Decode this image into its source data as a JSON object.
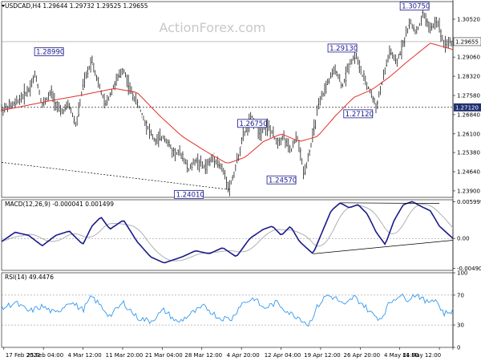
{
  "watermark": "ActionForex.com",
  "chart_data": [
    {
      "type": "line",
      "panel": "price",
      "header": "USDCAD,H4  1.29644 1.29732 1.29525 1.29655",
      "ylim": [
        1.2365,
        1.312
      ],
      "y_ticks": [
        "1.30520",
        "1.29060",
        "1.28320",
        "1.27580",
        "1.26840",
        "1.26100",
        "1.25380",
        "1.24640",
        "1.23900"
      ],
      "y_tick_values": [
        1.3052,
        1.2906,
        1.2832,
        1.2758,
        1.2684,
        1.261,
        1.2538,
        1.2464,
        1.239
      ],
      "x_ticks": [
        "17 Feb 2022",
        "25 Feb 04:00",
        "4 Mar 12:00",
        "11 Mar 20:00",
        "21 Mar 04:00",
        "28 Mar 12:00",
        "4 Apr 20:00",
        "12 Apr 04:00",
        "19 Apr 12:00",
        "26 Apr 20:00",
        "4 May 04:00",
        "11 May 12:00"
      ],
      "current_price": {
        "label": "1.29655",
        "value": 1.29655
      },
      "level_line": {
        "label": "1.27120",
        "value": 1.2712
      },
      "annotations": [
        {
          "label": "1.28990",
          "value": 1.2899,
          "x_index": 0.105,
          "y_value": 1.2899
        },
        {
          "label": "1.24010",
          "value": 1.2401,
          "x_index": 0.415,
          "y_value": 1.2401
        },
        {
          "label": "1.26750",
          "value": 1.2675,
          "x_index": 0.555,
          "y_value": 1.2675
        },
        {
          "label": "1.24570",
          "value": 1.2457,
          "x_index": 0.62,
          "y_value": 1.2457
        },
        {
          "label": "1.29130",
          "value": 1.2913,
          "x_index": 0.755,
          "y_value": 1.2913
        },
        {
          "label": "1.27120",
          "value": 1.2712,
          "x_index": 0.79,
          "y_value": 1.2712
        },
        {
          "label": "1.30750",
          "value": 1.3075,
          "x_index": 0.915,
          "y_value": 1.3075
        }
      ],
      "price_anchors": [
        [
          0.0,
          1.2705
        ],
        [
          0.03,
          1.2725
        ],
        [
          0.06,
          1.278
        ],
        [
          0.075,
          1.284
        ],
        [
          0.09,
          1.272
        ],
        [
          0.11,
          1.277
        ],
        [
          0.13,
          1.269
        ],
        [
          0.15,
          1.272
        ],
        [
          0.165,
          1.264
        ],
        [
          0.18,
          1.279
        ],
        [
          0.2,
          1.2899
        ],
        [
          0.215,
          1.28
        ],
        [
          0.23,
          1.272
        ],
        [
          0.25,
          1.28
        ],
        [
          0.27,
          1.286
        ],
        [
          0.285,
          1.278
        ],
        [
          0.3,
          1.273
        ],
        [
          0.32,
          1.265
        ],
        [
          0.34,
          1.258
        ],
        [
          0.36,
          1.26
        ],
        [
          0.38,
          1.254
        ],
        [
          0.4,
          1.253
        ],
        [
          0.415,
          1.247
        ],
        [
          0.43,
          1.251
        ],
        [
          0.45,
          1.248
        ],
        [
          0.47,
          1.252
        ],
        [
          0.49,
          1.247
        ],
        [
          0.505,
          1.2401
        ],
        [
          0.52,
          1.249
        ],
        [
          0.535,
          1.26
        ],
        [
          0.555,
          1.2675
        ],
        [
          0.57,
          1.262
        ],
        [
          0.59,
          1.264
        ],
        [
          0.61,
          1.258
        ],
        [
          0.625,
          1.26
        ],
        [
          0.64,
          1.254
        ],
        [
          0.655,
          1.26
        ],
        [
          0.67,
          1.2457
        ],
        [
          0.685,
          1.256
        ],
        [
          0.7,
          1.27
        ],
        [
          0.72,
          1.28
        ],
        [
          0.74,
          1.286
        ],
        [
          0.755,
          1.279
        ],
        [
          0.77,
          1.288
        ],
        [
          0.785,
          1.2913
        ],
        [
          0.8,
          1.283
        ],
        [
          0.815,
          1.278
        ],
        [
          0.83,
          1.2712
        ],
        [
          0.845,
          1.282
        ],
        [
          0.86,
          1.293
        ],
        [
          0.875,
          1.288
        ],
        [
          0.89,
          1.296
        ],
        [
          0.905,
          1.304
        ],
        [
          0.92,
          1.3
        ],
        [
          0.935,
          1.3075
        ],
        [
          0.95,
          1.301
        ],
        [
          0.965,
          1.305
        ],
        [
          0.98,
          1.296
        ],
        [
          1.0,
          1.29655
        ]
      ],
      "ma_anchors": [
        [
          0.0,
          1.27
        ],
        [
          0.1,
          1.2735
        ],
        [
          0.18,
          1.276
        ],
        [
          0.25,
          1.2785
        ],
        [
          0.3,
          1.277
        ],
        [
          0.35,
          1.268
        ],
        [
          0.4,
          1.26
        ],
        [
          0.45,
          1.2545
        ],
        [
          0.5,
          1.2495
        ],
        [
          0.54,
          1.252
        ],
        [
          0.58,
          1.258
        ],
        [
          0.62,
          1.261
        ],
        [
          0.66,
          1.258
        ],
        [
          0.7,
          1.26
        ],
        [
          0.74,
          1.268
        ],
        [
          0.78,
          1.275
        ],
        [
          0.82,
          1.278
        ],
        [
          0.86,
          1.283
        ],
        [
          0.9,
          1.289
        ],
        [
          0.95,
          1.296
        ],
        [
          1.0,
          1.2935
        ]
      ],
      "trendline": {
        "from": [
          0.0,
          1.25
        ],
        "to": [
          0.505,
          1.2395
        ]
      }
    },
    {
      "type": "line",
      "panel": "macd",
      "header": "MACD(12,26,9) -0.000041 0.001499",
      "ylim": [
        -0.0052,
        0.0063
      ],
      "y_ticks": [
        "0.005999",
        "0.00",
        "-0.004901"
      ],
      "y_tick_values": [
        0.005999,
        0.0,
        -0.004901
      ],
      "macd_anchors": [
        [
          0.0,
          -0.0005
        ],
        [
          0.03,
          0.001
        ],
        [
          0.06,
          0.0005
        ],
        [
          0.09,
          -0.0012
        ],
        [
          0.12,
          0.0005
        ],
        [
          0.15,
          0.0012
        ],
        [
          0.18,
          -0.001
        ],
        [
          0.2,
          0.002
        ],
        [
          0.22,
          0.0035
        ],
        [
          0.24,
          0.0015
        ],
        [
          0.27,
          0.003
        ],
        [
          0.3,
          -0.0005
        ],
        [
          0.33,
          -0.003
        ],
        [
          0.36,
          -0.004
        ],
        [
          0.4,
          -0.003
        ],
        [
          0.43,
          -0.002
        ],
        [
          0.46,
          -0.0025
        ],
        [
          0.49,
          -0.0015
        ],
        [
          0.52,
          -0.003
        ],
        [
          0.55,
          0.0
        ],
        [
          0.58,
          0.0015
        ],
        [
          0.6,
          0.002
        ],
        [
          0.62,
          0.0005
        ],
        [
          0.64,
          0.002
        ],
        [
          0.66,
          -0.0005
        ],
        [
          0.69,
          -0.0025
        ],
        [
          0.71,
          0.001
        ],
        [
          0.73,
          0.0045
        ],
        [
          0.75,
          0.0058
        ],
        [
          0.77,
          0.005
        ],
        [
          0.79,
          0.0055
        ],
        [
          0.81,
          0.004
        ],
        [
          0.83,
          0.001
        ],
        [
          0.85,
          -0.001
        ],
        [
          0.87,
          0.003
        ],
        [
          0.89,
          0.0055
        ],
        [
          0.91,
          0.006
        ],
        [
          0.93,
          0.0052
        ],
        [
          0.95,
          0.0045
        ],
        [
          0.97,
          0.002
        ],
        [
          1.0,
          -0.0
        ]
      ],
      "trendline_top": {
        "from": [
          0.75,
          0.0058
        ],
        "to": [
          0.97,
          0.0057
        ]
      },
      "trendline_bottom": {
        "from": [
          0.69,
          -0.0025
        ],
        "to": [
          1.0,
          -0.0003
        ]
      }
    },
    {
      "type": "line",
      "panel": "rsi",
      "header": "RSI(14) 49.4476",
      "ylim": [
        0,
        100
      ],
      "y_ticks": [
        "100",
        "70",
        "30",
        "0"
      ],
      "y_tick_values": [
        100,
        70,
        30,
        0
      ],
      "rsi_anchors": [
        [
          0.0,
          52
        ],
        [
          0.03,
          60
        ],
        [
          0.06,
          48
        ],
        [
          0.09,
          55
        ],
        [
          0.12,
          45
        ],
        [
          0.15,
          62
        ],
        [
          0.18,
          50
        ],
        [
          0.2,
          68
        ],
        [
          0.22,
          55
        ],
        [
          0.24,
          42
        ],
        [
          0.27,
          60
        ],
        [
          0.3,
          40
        ],
        [
          0.33,
          35
        ],
        [
          0.36,
          50
        ],
        [
          0.39,
          33
        ],
        [
          0.42,
          45
        ],
        [
          0.45,
          55
        ],
        [
          0.48,
          40
        ],
        [
          0.51,
          38
        ],
        [
          0.53,
          58
        ],
        [
          0.56,
          66
        ],
        [
          0.58,
          52
        ],
        [
          0.61,
          60
        ],
        [
          0.64,
          45
        ],
        [
          0.66,
          40
        ],
        [
          0.68,
          30
        ],
        [
          0.7,
          55
        ],
        [
          0.72,
          70
        ],
        [
          0.74,
          66
        ],
        [
          0.76,
          55
        ],
        [
          0.78,
          68
        ],
        [
          0.8,
          58
        ],
        [
          0.82,
          45
        ],
        [
          0.84,
          38
        ],
        [
          0.86,
          60
        ],
        [
          0.88,
          70
        ],
        [
          0.9,
          65
        ],
        [
          0.92,
          72
        ],
        [
          0.94,
          60
        ],
        [
          0.96,
          66
        ],
        [
          0.98,
          45
        ],
        [
          1.0,
          49.45
        ]
      ]
    }
  ]
}
